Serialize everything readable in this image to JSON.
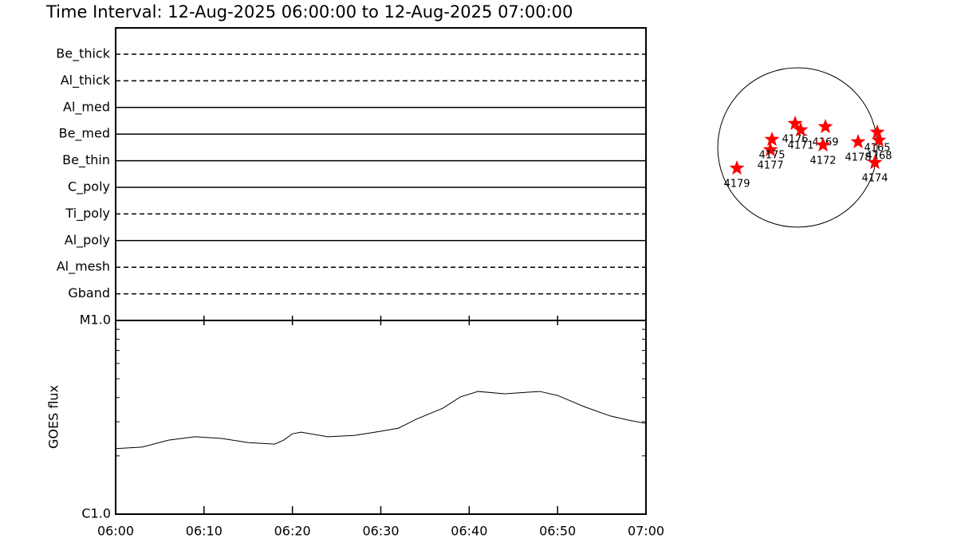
{
  "chart_data": [
    {
      "type": "filters",
      "title": "Time Interval: 12-Aug-2025 06:00:00 to 12-Aug-2025 07:00:00",
      "categories": [
        "Be_thick",
        "Al_thick",
        "Al_med",
        "Be_med",
        "Be_thin",
        "C_poly",
        "Ti_poly",
        "Al_poly",
        "Al_mesh",
        "Gband"
      ],
      "line_styles": [
        "dashed",
        "dashed",
        "solid",
        "solid",
        "solid",
        "solid",
        "dashed",
        "solid",
        "dashed",
        "dashed"
      ]
    },
    {
      "type": "line",
      "ylabel": "GOES flux",
      "x": [
        "06:00",
        "06:03",
        "06:06",
        "06:09",
        "06:12",
        "06:15",
        "06:18",
        "06:19",
        "06:20",
        "06:21",
        "06:24",
        "06:27",
        "06:30",
        "06:32",
        "06:34",
        "06:37",
        "06:39",
        "06:41",
        "06:44",
        "06:47",
        "06:48",
        "06:50",
        "06:53",
        "06:56",
        "06:58",
        "07:00"
      ],
      "values": [
        2.18e-06,
        2.22e-06,
        2.41e-06,
        2.51e-06,
        2.46e-06,
        2.34e-06,
        2.3e-06,
        2.41e-06,
        2.6e-06,
        2.65e-06,
        2.51e-06,
        2.55e-06,
        2.68e-06,
        2.78e-06,
        3.09e-06,
        3.52e-06,
        4.03e-06,
        4.3e-06,
        4.18e-06,
        4.27e-06,
        4.3e-06,
        4.1e-06,
        3.59e-06,
        3.21e-06,
        3.06e-06,
        2.94e-06
      ],
      "color": "#000000",
      "xlim": [
        "06:00",
        "07:00"
      ],
      "xticks": [
        "06:00",
        "06:10",
        "06:20",
        "06:30",
        "06:40",
        "06:50",
        "07:00"
      ],
      "ylim": [
        1e-06,
        1e-05
      ],
      "yticks": [
        {
          "value": 1e-06,
          "label": "C1.0"
        },
        {
          "value": 1e-05,
          "label": "M1.0"
        }
      ],
      "yminor": [
        2e-06,
        3e-06,
        4e-06,
        5e-06,
        6e-06,
        7e-06,
        8e-06,
        9e-06
      ],
      "log_scale": true
    },
    {
      "type": "disk",
      "labels": [
        "4179",
        "4177",
        "4175",
        "4176",
        "4171",
        "4169",
        "4172",
        "4178",
        "4165",
        "4168",
        "4174"
      ],
      "x": [
        -0.76,
        -0.34,
        -0.32,
        -0.03,
        0.04,
        0.35,
        0.32,
        0.76,
        1.0,
        1.02,
        0.97
      ],
      "y": [
        -0.26,
        -0.03,
        0.1,
        0.3,
        0.22,
        0.26,
        0.03,
        0.07,
        0.19,
        0.09,
        -0.19
      ],
      "xlim": [
        -1,
        1
      ],
      "ylim": [
        -1,
        1
      ],
      "color": "#ff0000"
    }
  ]
}
